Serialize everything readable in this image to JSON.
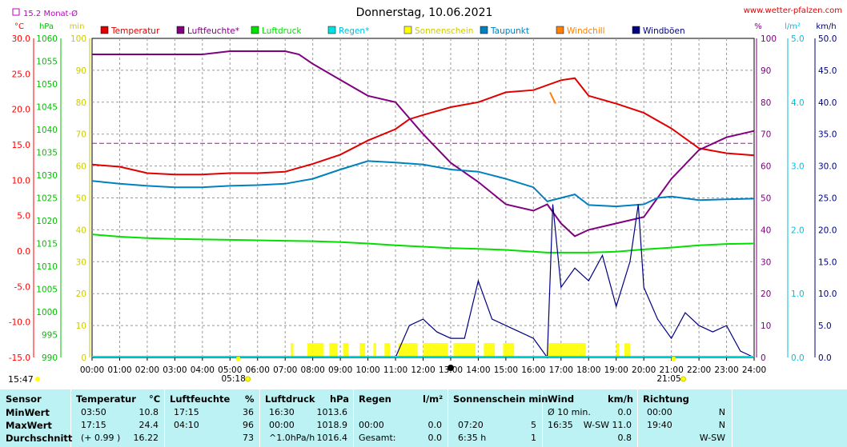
{
  "chart_data": {
    "type": "line",
    "title": "Donnerstag, 10.06.2021",
    "source": "www.wetter-pfalzen.com",
    "monthly_avg_label": "15.2 Monat-Ø",
    "monthly_avg_temp": 15.2,
    "axes": {
      "temp": {
        "unit": "°C",
        "range": [
          -15,
          30
        ],
        "ticks": [
          "30.0",
          "25.0",
          "20.0",
          "15.0",
          "10.0",
          "5.0",
          "0.0",
          "-5.0",
          "-10.0",
          "-15.0"
        ],
        "color": "#ff0000"
      },
      "pressure": {
        "unit": "hPa",
        "range": [
          990,
          1060
        ],
        "ticks": [
          "1060",
          "1055",
          "1050",
          "1045",
          "1040",
          "1035",
          "1030",
          "1025",
          "1020",
          "1015",
          "1010",
          "1005",
          "1000",
          "995",
          "990"
        ],
        "color": "#00c000"
      },
      "sunshine": {
        "unit": "min",
        "range": [
          0,
          100
        ],
        "ticks": [
          "100",
          "90",
          "80",
          "70",
          "60",
          "50",
          "40",
          "30",
          "20",
          "10",
          "0"
        ],
        "color": "#cccc00"
      },
      "humidity": {
        "unit": "%",
        "range": [
          0,
          100
        ],
        "ticks": [
          "100",
          "90",
          "80",
          "70",
          "60",
          "50",
          "40",
          "30",
          "20",
          "10",
          "0"
        ],
        "color": "#800080"
      },
      "rain": {
        "unit": "l/m²",
        "range": [
          0,
          5
        ],
        "ticks": [
          "5.0",
          "4.0",
          "3.0",
          "2.0",
          "1.0",
          "0.0"
        ],
        "color": "#00c0e0"
      },
      "wind": {
        "unit": "km/h",
        "range": [
          0,
          50
        ],
        "ticks": [
          "50.0",
          "45.0",
          "40.0",
          "35.0",
          "30.0",
          "25.0",
          "20.0",
          "15.0",
          "10.0",
          "5.0",
          "0.0"
        ],
        "color": "#000080"
      }
    },
    "x_ticks": [
      "00:00",
      "01:00",
      "02:00",
      "03:00",
      "04:00",
      "05:00",
      "06:00",
      "07:00",
      "08:00",
      "09:00",
      "10:00",
      "11:00",
      "12:00",
      "13:00",
      "14:00",
      "15:00",
      "16:00",
      "17:00",
      "18:00",
      "19:00",
      "20:00",
      "21:00",
      "22:00",
      "23:00",
      "24:00"
    ],
    "sunrise": "05:18",
    "sunset": "21:05",
    "legend": [
      {
        "name": "Temperatur",
        "color": "#e00000"
      },
      {
        "name": "Luftfeuchte*",
        "color": "#800080"
      },
      {
        "name": "Luftdruck",
        "color": "#00e000"
      },
      {
        "name": "Regen*",
        "color": "#00e0e0"
      },
      {
        "name": "Sonnenschein",
        "color": "#ffff00"
      },
      {
        "name": "Taupunkt",
        "color": "#0080c0"
      },
      {
        "name": "Windchill",
        "color": "#ff8000"
      },
      {
        "name": "Windböen",
        "color": "#000080"
      }
    ],
    "series": [
      {
        "name": "Temperatur",
        "unit": "°C",
        "x": [
          0,
          1,
          2,
          3,
          4,
          5,
          6,
          7,
          8,
          9,
          10,
          11,
          11.5,
          12,
          13,
          14,
          15,
          16,
          17,
          17.5,
          18,
          19,
          20,
          21,
          22,
          23,
          24
        ],
        "values": [
          12.2,
          11.9,
          11.0,
          10.8,
          10.8,
          11.0,
          11.0,
          11.2,
          12.3,
          13.6,
          15.6,
          17.2,
          18.6,
          19.2,
          20.3,
          21.0,
          22.4,
          22.7,
          24.1,
          24.4,
          21.9,
          20.8,
          19.5,
          17.3,
          14.5,
          13.8,
          13.5
        ]
      },
      {
        "name": "Luftfeuchte*",
        "unit": "%",
        "x": [
          0,
          1,
          2,
          3,
          4,
          5,
          6,
          7,
          7.5,
          8,
          9,
          10,
          11,
          12,
          13,
          14,
          15,
          16,
          16.5,
          17,
          17.5,
          18,
          19,
          20,
          21,
          22,
          23,
          24
        ],
        "values": [
          95,
          95,
          95,
          95,
          95,
          96,
          96,
          96,
          95,
          92,
          87,
          82,
          80,
          70,
          61,
          55,
          48,
          46,
          48,
          42,
          38,
          40,
          42,
          44,
          56,
          65,
          69,
          71
        ]
      },
      {
        "name": "Luftdruck",
        "unit": "hPa",
        "x": [
          0,
          1,
          2,
          3,
          4,
          5,
          6,
          7,
          8,
          9,
          10,
          11,
          12,
          13,
          14,
          15,
          16,
          16.5,
          17,
          18,
          19,
          20,
          21,
          22,
          23,
          24
        ],
        "values": [
          1017.0,
          1016.5,
          1016.2,
          1016.0,
          1015.9,
          1015.8,
          1015.7,
          1015.6,
          1015.5,
          1015.3,
          1015.0,
          1014.6,
          1014.3,
          1014.0,
          1013.8,
          1013.6,
          1013.2,
          1013.0,
          1013.0,
          1013.0,
          1013.2,
          1013.7,
          1014.1,
          1014.6,
          1014.9,
          1015.0
        ]
      },
      {
        "name": "Taupunkt",
        "unit": "°C",
        "x": [
          0,
          1,
          2,
          3,
          4,
          5,
          6,
          7,
          8,
          9,
          10,
          11,
          12,
          13,
          14,
          15,
          16,
          16.5,
          17,
          17.5,
          18,
          19,
          20,
          20.5,
          21,
          22,
          23,
          24
        ],
        "values": [
          9.9,
          9.5,
          9.2,
          9.0,
          9.0,
          9.2,
          9.3,
          9.5,
          10.2,
          11.5,
          12.7,
          12.5,
          12.2,
          11.5,
          11.2,
          10.2,
          9.0,
          7.0,
          7.5,
          8.0,
          6.5,
          6.3,
          6.6,
          7.5,
          7.7,
          7.2,
          7.3,
          7.4
        ]
      },
      {
        "name": "Windchill",
        "unit": "°C",
        "x": [
          16.6,
          16.8
        ],
        "values": [
          22.4,
          20.8
        ]
      },
      {
        "name": "Windböen",
        "unit": "km/h",
        "x": [
          0,
          11,
          11.5,
          12,
          12.5,
          13,
          13.5,
          14,
          14.5,
          15,
          15.5,
          16,
          16.5,
          16.7,
          17,
          17.5,
          18,
          18.5,
          19,
          19.5,
          19.8,
          20,
          20.5,
          21,
          21.5,
          22,
          22.5,
          23,
          23.5,
          24
        ],
        "values": [
          0,
          0,
          5,
          6,
          4,
          3,
          3,
          12,
          6,
          5,
          4,
          3,
          0,
          24,
          11,
          14,
          12,
          16,
          8,
          15,
          24,
          11,
          6,
          3,
          7,
          5,
          4,
          5,
          1,
          0
        ]
      }
    ],
    "sunshine_periods": [
      [
        7.2,
        7.3
      ],
      [
        7.8,
        8.4
      ],
      [
        8.6,
        8.9
      ],
      [
        9.1,
        9.3
      ],
      [
        9.7,
        9.9
      ],
      [
        10.2,
        10.3
      ],
      [
        10.6,
        10.8
      ],
      [
        11.1,
        11.8
      ],
      [
        12.0,
        12.9
      ],
      [
        13.1,
        13.9
      ],
      [
        14.2,
        14.6
      ],
      [
        14.9,
        15.3
      ],
      [
        16.5,
        17.9
      ],
      [
        19.0,
        19.1
      ],
      [
        19.3,
        19.5
      ]
    ]
  },
  "stats": {
    "headers": {
      "sensor": "Sensor",
      "temperatur": "Temperatur",
      "temp_unit": "°C",
      "luftfeuchte": "Luftfeuchte",
      "hum_unit": "%",
      "luftdruck": "Luftdruck",
      "press_unit": "hPa",
      "regen": "Regen",
      "rain_unit": "l/m²",
      "sonne": "Sonnenschein min",
      "wind": "Wind",
      "wind_unit": "km/h",
      "richtung": "Richtung"
    },
    "rows": [
      {
        "label": "MinWert",
        "t_time": "03:50",
        "t_val": "10.8",
        "h_time": "17:15",
        "h_val": "36",
        "p_time": "16:30",
        "p_val": "1013.6",
        "r_time": "",
        "r_val": "",
        "s_time": "",
        "s_val": "",
        "w_time": "Ø 10 min.",
        "w_val": "0.0",
        "d_time": "00:00",
        "d_val": "N"
      },
      {
        "label": "MaxWert",
        "t_time": "17:15",
        "t_val": "24.4",
        "h_time": "04:10",
        "h_val": "96",
        "p_time": "00:00",
        "p_val": "1018.9",
        "r_time": "00:00",
        "r_val": "0.0",
        "s_time": "07:20",
        "s_val": "5",
        "w_time": "16:35",
        "w_val": "W-SW 11.0",
        "d_time": "19:40",
        "d_val": "N"
      },
      {
        "label": "Durchschnitt",
        "t_time": "(+ 0.99 )",
        "t_val": "16.22",
        "h_time": "",
        "h_val": "73",
        "p_time": "^1.0hPa/h",
        "p_val": "1016.4",
        "r_time": "Gesamt:",
        "r_val": "0.0",
        "s_time": "6:35 h",
        "s_val": "1",
        "w_time": "",
        "w_val": "0.8",
        "d_time": "",
        "d_val": "W-SW"
      }
    ]
  },
  "footer_time": "15:47"
}
